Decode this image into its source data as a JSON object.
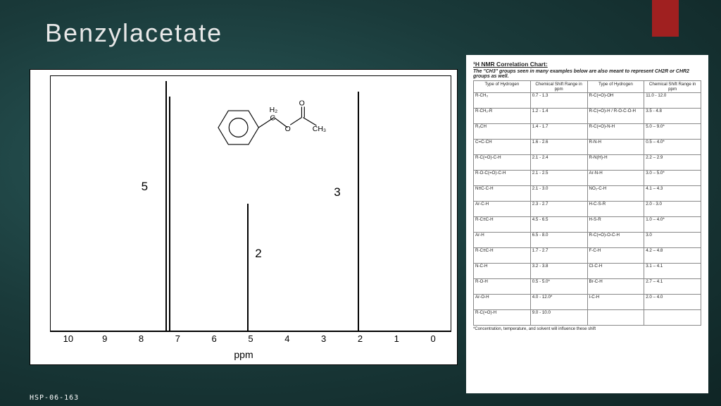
{
  "slide": {
    "title": "Benzylacetate",
    "id": "HSP-06-163",
    "accent_color": "#a02020"
  },
  "spectrum": {
    "xaxis_label": "ppm",
    "xlim": [
      -0.5,
      10.5
    ],
    "ticks": [
      10,
      9,
      8,
      7,
      6,
      5,
      4,
      3,
      2,
      1,
      0
    ],
    "baseline_color": "#000000",
    "peaks": [
      {
        "ppm": 7.35,
        "height_pct": 98,
        "label": "5",
        "label_side": "left"
      },
      {
        "ppm": 7.25,
        "height_pct": 92
      },
      {
        "ppm": 5.1,
        "height_pct": 50,
        "label": "2",
        "label_side": "right"
      },
      {
        "ppm": 2.05,
        "height_pct": 94,
        "label": "3",
        "label_side": "left"
      }
    ],
    "molecule_labels": {
      "ch2": "H₂",
      "c": "C",
      "o1": "O",
      "o2": "O",
      "ch3": "CH₃"
    }
  },
  "correlation_chart": {
    "title": "¹H NMR Correlation Chart:",
    "subtitle": "The \"CH3\" groups seen in many examples below are also meant to represent CH2R or CHR2 groups as well.",
    "headers": [
      "Type of Hydrogen",
      "Chemical Shift Range in ppm",
      "Type of Hydrogen",
      "Chemical Shift Range in ppm"
    ],
    "rows": [
      [
        "R-CH₃",
        "0.7 - 1.3",
        "R-C(=O)-OH",
        "11.0 - 12.0"
      ],
      [
        "R-CH₂-R",
        "1.2 - 1.4",
        "R-C(=O)-H / R-O-C-O-H",
        "3.5 - 4.8"
      ],
      [
        "R₃CH",
        "1.4 - 1.7",
        "R-C(=O)-N-H",
        "5.0 – 9.0*"
      ],
      [
        "C=C-CH",
        "1.6 - 2.6",
        "R-N-H",
        "0.5 – 4.0*"
      ],
      [
        "R-C(=O)-C-H",
        "2.1 - 2.4",
        "R-N(H)-H",
        "2.2 – 2.9"
      ],
      [
        "R-O-C(=O)-C-H",
        "2.1 - 2.5",
        "Ar-N-H",
        "3.0 – 5.0*"
      ],
      [
        "N≡C-C-H",
        "2.1 - 3.0",
        "NO₂-C-H",
        "4.1 – 4.3"
      ],
      [
        "Ar-C-H",
        "2.3 - 2.7",
        "H-C-S-R",
        "2.0 - 3.0"
      ],
      [
        "R-C≡C-H",
        "4.5 - 6.5",
        "H-S-R",
        "1.0 – 4.0*"
      ],
      [
        "Ar-H",
        "6.5 - 8.0",
        "R-C(=O)-O-C-H",
        "3.0"
      ],
      [
        "R-C≡C-H",
        "1.7 - 2.7",
        "F-C-H",
        "4.2 – 4.8"
      ],
      [
        "N-C-H",
        "3.2 - 3.8",
        "Cl-C-H",
        "3.1 – 4.1"
      ],
      [
        "R-O-H",
        "0.5 - 5.0*",
        "Br-C-H",
        "2.7 – 4.1"
      ],
      [
        "Ar-O-H",
        "4.0 - 12.0*",
        "I-C-H",
        "2.0 – 4.0"
      ],
      [
        "R-C(=O)-H",
        "9.0 - 10.0",
        "",
        ""
      ]
    ],
    "footnote": "*Concentration, temperature, and solvent will influence these shift"
  }
}
